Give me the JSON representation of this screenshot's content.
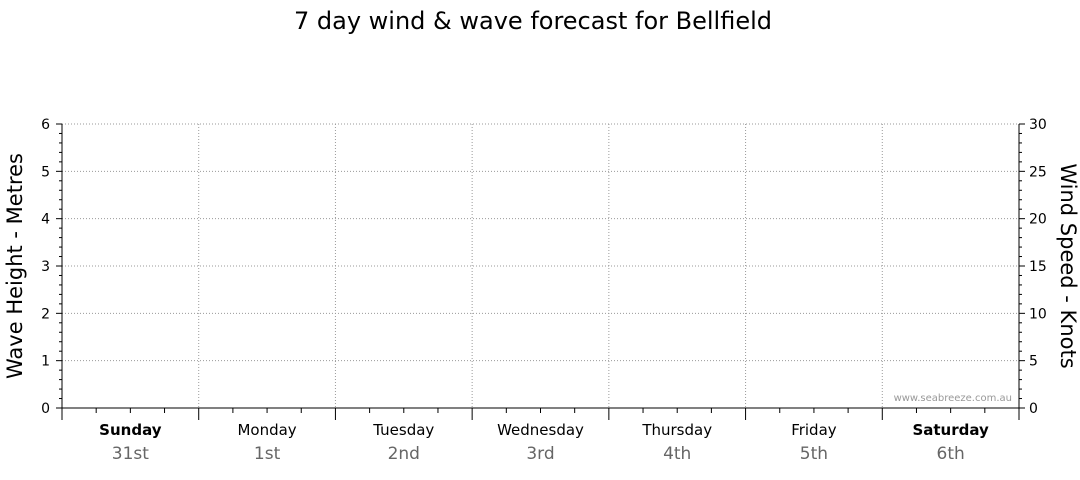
{
  "chart_data": {
    "type": "line",
    "title": "7 day wind & wave forecast for Bellfield",
    "y_left": {
      "label": "Wave Height - Metres",
      "range": [
        0,
        6
      ],
      "ticks": [
        "0",
        "1",
        "2",
        "3",
        "4",
        "5",
        "6"
      ]
    },
    "y_right": {
      "label": "Wind Speed - Knots",
      "range": [
        0,
        30
      ],
      "ticks": [
        "0",
        "5",
        "10",
        "15",
        "20",
        "25",
        "30"
      ]
    },
    "days": [
      {
        "day": "Sunday",
        "date": "31st",
        "bold": true
      },
      {
        "day": "Monday",
        "date": "1st",
        "bold": false
      },
      {
        "day": "Tuesday",
        "date": "2nd",
        "bold": false
      },
      {
        "day": "Wednesday",
        "date": "3rd",
        "bold": false
      },
      {
        "day": "Thursday",
        "date": "4th",
        "bold": false
      },
      {
        "day": "Friday",
        "date": "5th",
        "bold": false
      },
      {
        "day": "Saturday",
        "date": "6th",
        "bold": true
      }
    ],
    "series": [],
    "grid": true,
    "watermark": "www.seabreeze.com.au"
  }
}
